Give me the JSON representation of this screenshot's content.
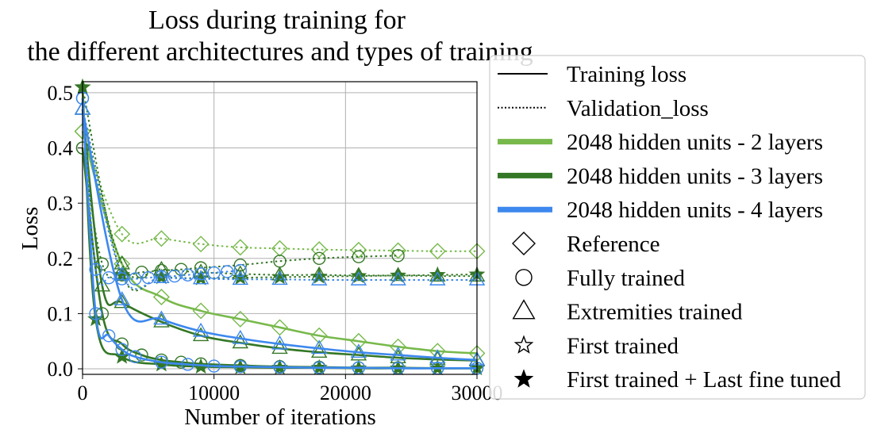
{
  "chart_data": {
    "type": "line",
    "title_lines": [
      "Loss during training for",
      "the different architectures and types of training"
    ],
    "xlabel": "Number of iterations",
    "ylabel": "Loss",
    "xlim": [
      0,
      30000
    ],
    "ylim": [
      -0.01,
      0.52
    ],
    "xticks": [
      0,
      10000,
      20000,
      30000
    ],
    "yticks": [
      0.0,
      0.1,
      0.2,
      0.3,
      0.4,
      0.5
    ],
    "grid": true,
    "legend_position": "right",
    "architecture_colors": {
      "2 layers": "#77b94b",
      "3 layers": "#347726",
      "4 layers": "#3d88ee"
    },
    "legend": {
      "line_styles": [
        {
          "label": "Training loss",
          "style": "solid"
        },
        {
          "label": "Validation_loss",
          "style": "dotted"
        }
      ],
      "architectures": [
        {
          "label": "2048 hidden units - 2 layers",
          "color": "#77b94b"
        },
        {
          "label": "2048 hidden units - 3 layers",
          "color": "#347726"
        },
        {
          "label": "2048 hidden units - 4 layers",
          "color": "#3d88ee"
        }
      ],
      "training_types": [
        {
          "label": "Reference",
          "marker": "diamond"
        },
        {
          "label": "Fully trained",
          "marker": "circle"
        },
        {
          "label": "Extremities trained",
          "marker": "triangle"
        },
        {
          "label": "First trained",
          "marker": "star-open"
        },
        {
          "label": "First trained + Last fine tuned",
          "marker": "star-filled"
        }
      ]
    },
    "series": [
      {
        "name": "2 layers - Reference - Training",
        "architecture": "2 layers",
        "training": "Reference",
        "kind": "training",
        "start": 0.43,
        "floor": 0.0,
        "tau": 2500,
        "amp2": 0.0,
        "tau2": 30000,
        "amp3": 0.24,
        "tau3": 12000,
        "markers": [
          [
            0,
            0.43
          ],
          [
            3000,
            0.19
          ],
          [
            6000,
            0.13
          ],
          [
            9000,
            0.105
          ],
          [
            12000,
            0.09
          ],
          [
            15000,
            0.075
          ],
          [
            18000,
            0.06
          ],
          [
            21000,
            0.05
          ],
          [
            24000,
            0.04
          ],
          [
            27000,
            0.032
          ],
          [
            30000,
            0.028
          ]
        ]
      },
      {
        "name": "2 layers - Reference - Validation",
        "architecture": "2 layers",
        "training": "Reference",
        "kind": "validation",
        "markers": [
          [
            0,
            0.43
          ],
          [
            3000,
            0.244
          ],
          [
            6000,
            0.236
          ],
          [
            9000,
            0.226
          ],
          [
            12000,
            0.22
          ],
          [
            15000,
            0.218
          ],
          [
            18000,
            0.216
          ],
          [
            21000,
            0.215
          ],
          [
            24000,
            0.214
          ],
          [
            27000,
            0.213
          ],
          [
            30000,
            0.213
          ]
        ]
      },
      {
        "name": "3 layers - Fully trained - Training",
        "architecture": "3 layers",
        "training": "Fully trained",
        "kind": "training",
        "markers": [
          [
            0,
            0.4
          ],
          [
            1500,
            0.1
          ],
          [
            3000,
            0.045
          ],
          [
            4500,
            0.025
          ],
          [
            6000,
            0.016
          ],
          [
            7500,
            0.012
          ],
          [
            9000,
            0.009
          ],
          [
            12000,
            0.006
          ],
          [
            15000,
            0.004
          ],
          [
            18000,
            0.003
          ],
          [
            21000,
            0.002
          ],
          [
            24000,
            0.002
          ],
          [
            27000,
            0.001
          ],
          [
            30000,
            0.001
          ]
        ]
      },
      {
        "name": "3 layers - Fully trained - Validation",
        "architecture": "3 layers",
        "training": "Fully trained",
        "kind": "validation",
        "markers": [
          [
            0,
            0.4
          ],
          [
            1500,
            0.19
          ],
          [
            3000,
            0.17
          ],
          [
            4500,
            0.175
          ],
          [
            6000,
            0.178
          ],
          [
            7500,
            0.18
          ],
          [
            9000,
            0.183
          ],
          [
            12000,
            0.188
          ],
          [
            15000,
            0.195
          ],
          [
            18000,
            0.2
          ],
          [
            21000,
            0.203
          ],
          [
            24000,
            0.205
          ]
        ]
      },
      {
        "name": "3 layers - Extremities trained - Training",
        "architecture": "3 layers",
        "training": "Extremities trained",
        "kind": "training",
        "markers": [
          [
            0,
            0.47
          ],
          [
            1500,
            0.15
          ],
          [
            3000,
            0.12
          ],
          [
            6000,
            0.085
          ],
          [
            9000,
            0.06
          ],
          [
            12000,
            0.047
          ],
          [
            15000,
            0.037
          ],
          [
            18000,
            0.03
          ],
          [
            21000,
            0.025
          ],
          [
            24000,
            0.02
          ],
          [
            27000,
            0.017
          ],
          [
            30000,
            0.015
          ]
        ]
      },
      {
        "name": "3 layers - Extremities trained - Validation",
        "architecture": "3 layers",
        "training": "Extremities trained",
        "kind": "validation",
        "markers": [
          [
            0,
            0.47
          ],
          [
            3000,
            0.19
          ],
          [
            6000,
            0.18
          ],
          [
            9000,
            0.175
          ],
          [
            12000,
            0.172
          ],
          [
            15000,
            0.17
          ],
          [
            18000,
            0.17
          ],
          [
            21000,
            0.169
          ],
          [
            24000,
            0.169
          ],
          [
            27000,
            0.168
          ],
          [
            30000,
            0.168
          ]
        ]
      },
      {
        "name": "3 layers - First trained + Last fine tuned - Training",
        "architecture": "3 layers",
        "training": "First trained + Last fine tuned",
        "kind": "training",
        "markers": [
          [
            0,
            0.51
          ],
          [
            1000,
            0.09
          ],
          [
            3000,
            0.022
          ],
          [
            6000,
            0.008
          ],
          [
            9000,
            0.004
          ],
          [
            12000,
            0.003
          ],
          [
            15000,
            0.002
          ],
          [
            18000,
            0.002
          ],
          [
            21000,
            0.001
          ],
          [
            24000,
            0.001
          ],
          [
            27000,
            0.001
          ],
          [
            30000,
            0.001
          ]
        ]
      },
      {
        "name": "3 layers - First trained + Last fine tuned - Validation",
        "architecture": "3 layers",
        "training": "First trained + Last fine tuned",
        "kind": "validation",
        "markers": [
          [
            0,
            0.51
          ],
          [
            3000,
            0.17
          ],
          [
            6000,
            0.166
          ],
          [
            9000,
            0.164
          ],
          [
            12000,
            0.165
          ],
          [
            15000,
            0.166
          ],
          [
            18000,
            0.167
          ],
          [
            21000,
            0.168
          ],
          [
            24000,
            0.169
          ],
          [
            27000,
            0.17
          ],
          [
            30000,
            0.171
          ]
        ]
      },
      {
        "name": "4 layers - Fully trained - Training",
        "architecture": "4 layers",
        "training": "Fully trained",
        "kind": "training",
        "markers": [
          [
            0,
            0.49
          ],
          [
            1000,
            0.1
          ],
          [
            2000,
            0.06
          ],
          [
            3000,
            0.035
          ],
          [
            4000,
            0.022
          ],
          [
            6000,
            0.012
          ],
          [
            8000,
            0.008
          ],
          [
            10000,
            0.005
          ],
          [
            12000,
            0.004
          ],
          [
            15000,
            0.003
          ],
          [
            18000,
            0.002
          ],
          [
            21000,
            0.002
          ],
          [
            24000,
            0.001
          ],
          [
            27000,
            0.001
          ],
          [
            30000,
            0.001
          ]
        ]
      },
      {
        "name": "4 layers - Fully trained - Validation",
        "architecture": "4 layers",
        "training": "Fully trained",
        "kind": "validation",
        "markers": [
          [
            0,
            0.49
          ],
          [
            1000,
            0.18
          ],
          [
            2000,
            0.165
          ],
          [
            3000,
            0.163
          ],
          [
            4000,
            0.163
          ],
          [
            5000,
            0.165
          ],
          [
            6000,
            0.167
          ],
          [
            7000,
            0.168
          ],
          [
            8000,
            0.17
          ],
          [
            9000,
            0.172
          ],
          [
            10000,
            0.174
          ],
          [
            11000,
            0.176
          ],
          [
            12000,
            0.178
          ]
        ]
      },
      {
        "name": "4 layers - Extremities trained - Training",
        "architecture": "4 layers",
        "training": "Extremities trained",
        "kind": "training",
        "markers": [
          [
            0,
            0.47
          ],
          [
            3000,
            0.125
          ],
          [
            6000,
            0.09
          ],
          [
            9000,
            0.068
          ],
          [
            12000,
            0.055
          ],
          [
            15000,
            0.045
          ],
          [
            18000,
            0.037
          ],
          [
            21000,
            0.03
          ],
          [
            24000,
            0.025
          ],
          [
            27000,
            0.02
          ],
          [
            30000,
            0.016
          ]
        ]
      },
      {
        "name": "4 layers - Extremities trained - Validation",
        "architecture": "4 layers",
        "training": "Extremities trained",
        "kind": "validation",
        "markers": [
          [
            0,
            0.47
          ],
          [
            3000,
            0.17
          ],
          [
            6000,
            0.165
          ],
          [
            9000,
            0.163
          ],
          [
            12000,
            0.162
          ],
          [
            15000,
            0.162
          ],
          [
            18000,
            0.161
          ],
          [
            21000,
            0.161
          ],
          [
            24000,
            0.161
          ],
          [
            27000,
            0.161
          ],
          [
            30000,
            0.161
          ]
        ]
      }
    ]
  }
}
